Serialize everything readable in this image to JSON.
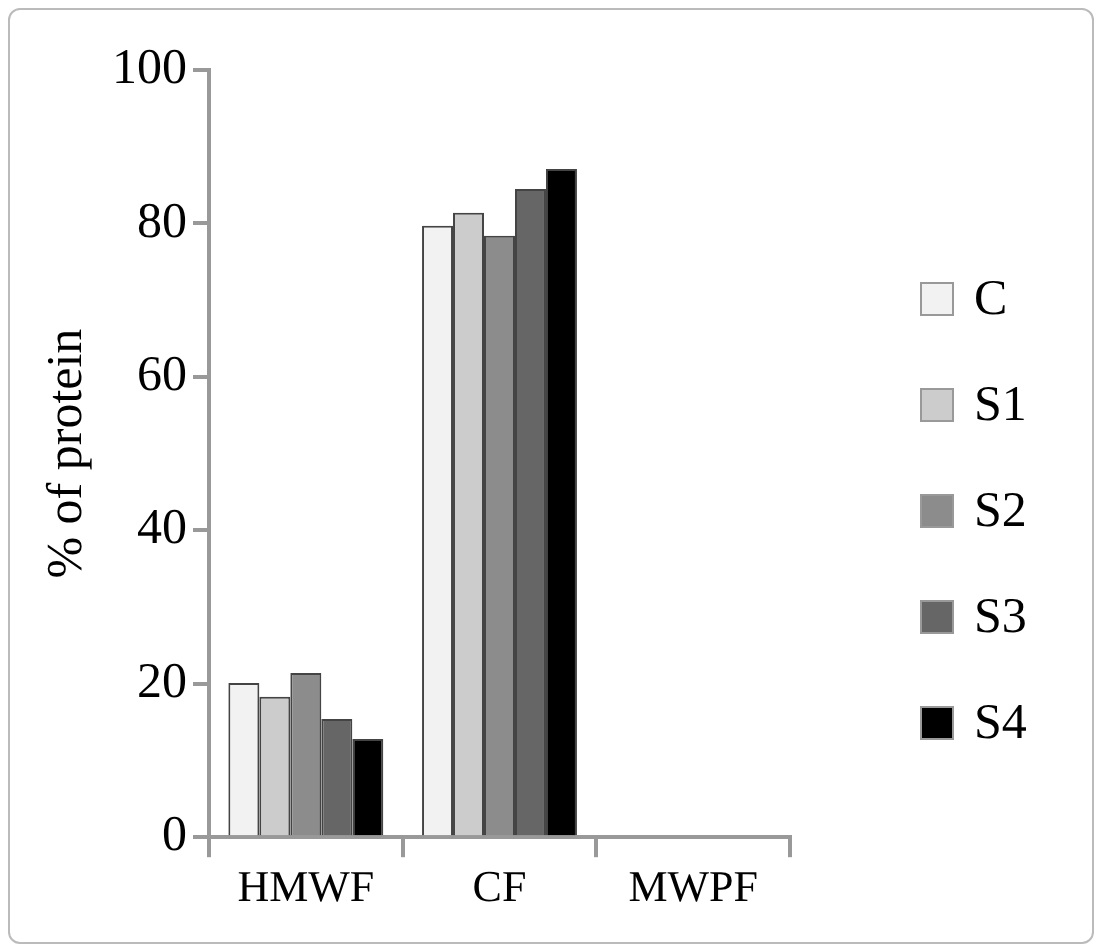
{
  "chart_data": {
    "type": "bar",
    "ylabel": "% of protein",
    "categories": [
      "HMWF",
      "CF",
      "MWPF"
    ],
    "series": [
      {
        "name": "C",
        "color": "#f2f2f2",
        "values": [
          20.1,
          79.7,
          0
        ]
      },
      {
        "name": "S1",
        "color": "#cccccc",
        "values": [
          18.3,
          81.4,
          0
        ]
      },
      {
        "name": "S2",
        "color": "#8c8c8c",
        "values": [
          21.4,
          78.4,
          0
        ]
      },
      {
        "name": "S3",
        "color": "#666666",
        "values": [
          15.4,
          84.5,
          0
        ]
      },
      {
        "name": "S4",
        "color": "#000000",
        "values": [
          12.8,
          87.1,
          0
        ]
      }
    ],
    "ylim": [
      0,
      100
    ],
    "yticks": [
      0,
      20,
      40,
      60,
      80,
      100
    ],
    "grid": false,
    "legend": "right"
  }
}
